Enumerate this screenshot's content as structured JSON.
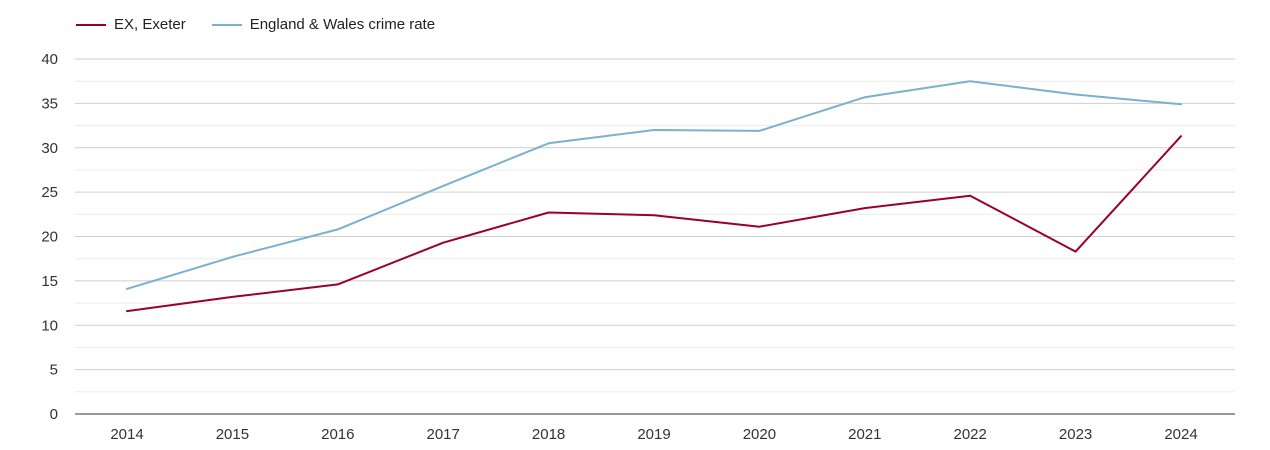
{
  "chart_data": {
    "type": "line",
    "title": "",
    "xlabel": "",
    "ylabel": "",
    "x": [
      "2014",
      "2015",
      "2016",
      "2017",
      "2018",
      "2019",
      "2020",
      "2021",
      "2022",
      "2023",
      "2024"
    ],
    "ylim": [
      0,
      40
    ],
    "yticks": [
      "0",
      "5",
      "10",
      "15",
      "20",
      "25",
      "30",
      "35",
      "40"
    ],
    "legend_position": "top-left",
    "series": [
      {
        "name": "EX, Exeter",
        "color": "#99002e",
        "values": [
          11.6,
          13.2,
          14.6,
          19.3,
          22.7,
          22.4,
          21.1,
          23.2,
          24.6,
          18.3,
          31.3
        ]
      },
      {
        "name": "England & Wales crime rate",
        "color": "#7ab0d0",
        "values": [
          14.1,
          17.7,
          20.8,
          25.7,
          30.5,
          32.0,
          31.9,
          35.7,
          37.5,
          36.0,
          34.9
        ]
      }
    ]
  }
}
